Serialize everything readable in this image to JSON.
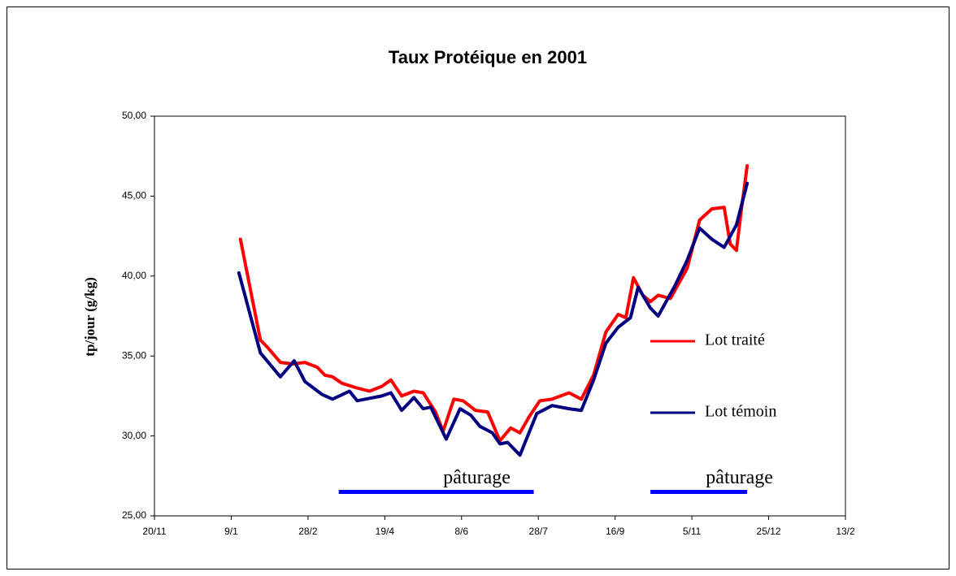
{
  "chart_data": {
    "type": "line",
    "title": "Taux Protéique en 2001",
    "ylabel": "tp/jour (g/kg)",
    "xlim": [
      0,
      450
    ],
    "xticks": [
      {
        "value": 0,
        "label": "20/11"
      },
      {
        "value": 50,
        "label": "9/1"
      },
      {
        "value": 100,
        "label": "28/2"
      },
      {
        "value": 150,
        "label": "19/4"
      },
      {
        "value": 200,
        "label": "8/6"
      },
      {
        "value": 250,
        "label": "28/7"
      },
      {
        "value": 300,
        "label": "16/9"
      },
      {
        "value": 350,
        "label": "5/11"
      },
      {
        "value": 400,
        "label": "25/12"
      },
      {
        "value": 450,
        "label": "13/2"
      }
    ],
    "ylim": [
      25,
      50
    ],
    "yticks": [
      {
        "value": 25,
        "label": "25,00"
      },
      {
        "value": 30,
        "label": "30,00"
      },
      {
        "value": 35,
        "label": "35,00"
      },
      {
        "value": 40,
        "label": "40,00"
      },
      {
        "value": 45,
        "label": "45,00"
      },
      {
        "value": 50,
        "label": "50,00"
      }
    ],
    "grid": false,
    "legend": "right",
    "series": [
      {
        "name": "Lot traité",
        "color": "#ff0000",
        "x": [
          56,
          69,
          74,
          82,
          90,
          98,
          106,
          111,
          116,
          122,
          132,
          140,
          148,
          154,
          161,
          169,
          175,
          183,
          188,
          195,
          201,
          209,
          217,
          225,
          232,
          238,
          244,
          251,
          259,
          270,
          278,
          286,
          294,
          302,
          307,
          312,
          318,
          323,
          328,
          336,
          347,
          355,
          363,
          371,
          375,
          379,
          382,
          386
        ],
        "values": [
          42.3,
          36,
          35.5,
          34.6,
          34.5,
          34.6,
          34.3,
          33.8,
          33.7,
          33.3,
          33.0,
          32.8,
          33.1,
          33.5,
          32.5,
          32.8,
          32.7,
          31.5,
          30.3,
          32.3,
          32.2,
          31.6,
          31.5,
          29.7,
          30.5,
          30.2,
          31.2,
          32.2,
          32.3,
          32.7,
          32.3,
          33.8,
          36.5,
          37.6,
          37.4,
          39.9,
          38.8,
          38.4,
          38.8,
          38.6,
          40.5,
          43.5,
          44.2,
          44.3,
          42.0,
          41.6,
          44.0,
          46.9
        ]
      },
      {
        "name": "Lot témoin",
        "color": "#000080",
        "x": [
          55,
          69,
          82,
          91,
          98,
          109,
          116,
          127,
          132,
          148,
          154,
          161,
          169,
          175,
          180,
          190,
          199,
          206,
          212,
          220,
          225,
          230,
          238,
          249,
          259,
          270,
          278,
          286,
          294,
          302,
          310,
          315,
          323,
          328,
          339,
          347,
          355,
          363,
          371,
          379,
          386
        ],
        "values": [
          40.2,
          35.2,
          33.7,
          34.7,
          33.4,
          32.6,
          32.3,
          32.8,
          32.2,
          32.5,
          32.7,
          31.6,
          32.4,
          31.7,
          31.8,
          29.8,
          31.7,
          31.3,
          30.6,
          30.2,
          29.5,
          29.6,
          28.8,
          31.4,
          31.9,
          31.7,
          31.6,
          33.5,
          35.8,
          36.8,
          37.4,
          39.3,
          38.0,
          37.5,
          39.4,
          41.0,
          43.0,
          42.3,
          41.8,
          43.2,
          45.8
        ]
      }
    ],
    "annotations": [
      {
        "text": "pâturage",
        "x": [
          120,
          247
        ],
        "y": 26.5,
        "color": "#0000ff"
      },
      {
        "text": "pâturage",
        "x": [
          323,
          386
        ],
        "y": 26.5,
        "color": "#0000ff"
      }
    ]
  }
}
